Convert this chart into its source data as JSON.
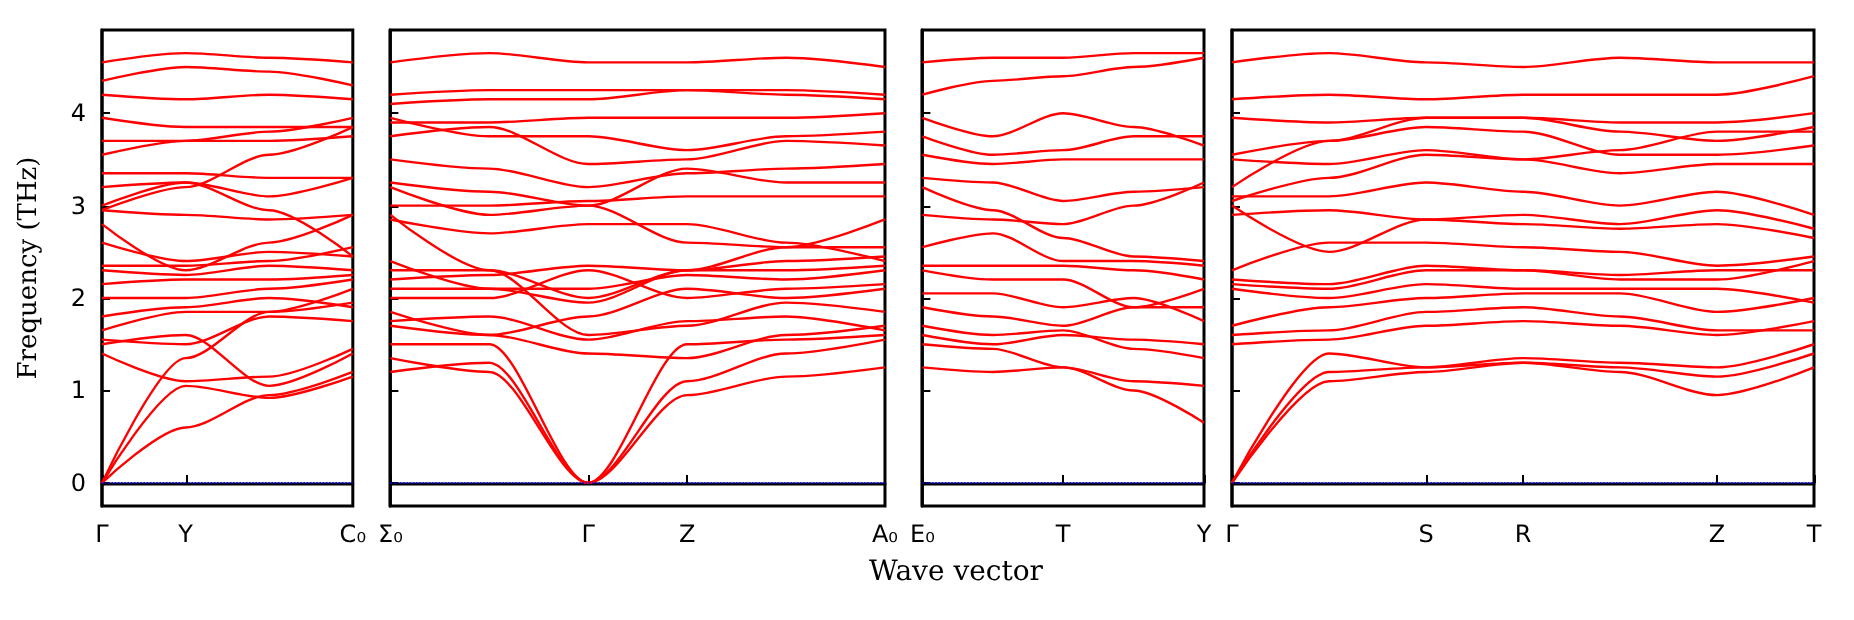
{
  "chart_data": [
    {
      "type": "line",
      "ylabel": "Frequency (THz)",
      "categories": [
        "Γ",
        "Y",
        null,
        "C₀"
      ],
      "ylim": [
        -0.25,
        4.9
      ],
      "yticks": [
        0,
        1,
        2,
        3,
        4
      ],
      "grid": false,
      "ref_lines": [
        {
          "axis": "y",
          "value": 0,
          "color": "#0000ff",
          "line_style": "dotted"
        }
      ],
      "series": [
        {
          "color": "#ff0000",
          "values": [
            0,
            0.6,
            0.95,
            1.2
          ]
        },
        {
          "color": "#ff0000",
          "values": [
            0,
            1.05,
            0.92,
            1.15
          ]
        },
        {
          "color": "#ff0000",
          "values": [
            0,
            1.35,
            1.85,
            2.1
          ]
        },
        {
          "color": "#ff0000",
          "values": [
            1.4,
            1.1,
            1.15,
            1.45
          ]
        },
        {
          "color": "#ff0000",
          "values": [
            1.5,
            1.6,
            1.05,
            1.4
          ]
        },
        {
          "color": "#ff0000",
          "values": [
            1.55,
            1.5,
            1.8,
            1.75
          ]
        },
        {
          "color": "#ff0000",
          "values": [
            1.65,
            1.85,
            1.85,
            1.95
          ]
        },
        {
          "color": "#ff0000",
          "values": [
            1.8,
            1.9,
            2.0,
            1.9
          ]
        },
        {
          "color": "#ff0000",
          "values": [
            2.0,
            2.0,
            2.1,
            2.2
          ]
        },
        {
          "color": "#ff0000",
          "values": [
            2.15,
            2.2,
            2.2,
            2.25
          ]
        },
        {
          "color": "#ff0000",
          "values": [
            2.3,
            2.25,
            2.35,
            2.3
          ]
        },
        {
          "color": "#ff0000",
          "values": [
            2.35,
            2.35,
            2.4,
            2.55
          ]
        },
        {
          "color": "#ff0000",
          "values": [
            2.6,
            2.4,
            2.5,
            2.45
          ]
        },
        {
          "color": "#ff0000",
          "values": [
            2.8,
            2.3,
            2.6,
            2.9
          ]
        },
        {
          "color": "#ff0000",
          "values": [
            2.95,
            2.9,
            2.85,
            2.9
          ]
        },
        {
          "color": "#ff0000",
          "values": [
            3.0,
            3.25,
            2.95,
            2.45
          ]
        },
        {
          "color": "#ff0000",
          "values": [
            3.2,
            3.25,
            3.1,
            3.3
          ]
        },
        {
          "color": "#ff0000",
          "values": [
            3.35,
            3.35,
            3.3,
            3.3
          ]
        },
        {
          "color": "#ff0000",
          "values": [
            2.95,
            3.2,
            3.55,
            3.85
          ]
        },
        {
          "color": "#ff0000",
          "values": [
            3.55,
            3.7,
            3.7,
            3.75
          ]
        },
        {
          "color": "#ff0000",
          "values": [
            3.7,
            3.7,
            3.8,
            3.95
          ]
        },
        {
          "color": "#ff0000",
          "values": [
            3.95,
            3.85,
            3.85,
            3.85
          ]
        },
        {
          "color": "#ff0000",
          "values": [
            4.2,
            4.15,
            4.2,
            4.15
          ]
        },
        {
          "color": "#ff0000",
          "values": [
            4.35,
            4.5,
            4.45,
            4.3
          ]
        },
        {
          "color": "#ff0000",
          "values": [
            4.55,
            4.65,
            4.6,
            4.55
          ]
        }
      ]
    },
    {
      "type": "line",
      "categories": [
        "Σ₀",
        null,
        "Γ",
        "Z",
        null,
        "A₀"
      ],
      "ylim": [
        -0.25,
        4.9
      ],
      "yticks": [
        0,
        1,
        2,
        3,
        4
      ],
      "tick_labels": "x",
      "grid": false,
      "ref_lines": [
        {
          "axis": "y",
          "value": 0,
          "color": "#0000ff",
          "line_style": "dotted"
        }
      ],
      "series": [
        {
          "color": "#ff0000",
          "values": [
            1.2,
            1.3,
            0,
            0.95,
            1.15,
            1.25
          ]
        },
        {
          "color": "#ff0000",
          "values": [
            1.35,
            1.2,
            0,
            1.1,
            1.4,
            1.55
          ]
        },
        {
          "color": "#ff0000",
          "values": [
            1.5,
            1.5,
            0,
            1.5,
            1.55,
            1.6
          ]
        },
        {
          "color": "#ff0000",
          "values": [
            1.7,
            1.6,
            1.4,
            1.35,
            1.6,
            1.7
          ]
        },
        {
          "color": "#ff0000",
          "values": [
            1.75,
            1.8,
            1.55,
            1.75,
            1.8,
            1.65
          ]
        },
        {
          "color": "#ff0000",
          "values": [
            1.85,
            1.6,
            1.8,
            2.1,
            2.0,
            2.1
          ]
        },
        {
          "color": "#ff0000",
          "values": [
            2.0,
            2.0,
            2.3,
            2.0,
            2.1,
            2.15
          ]
        },
        {
          "color": "#ff0000",
          "values": [
            2.1,
            2.1,
            2.1,
            2.25,
            2.2,
            2.3
          ]
        },
        {
          "color": "#ff0000",
          "values": [
            2.2,
            2.25,
            2.35,
            2.3,
            2.3,
            2.35
          ]
        },
        {
          "color": "#ff0000",
          "values": [
            2.3,
            2.3,
            1.6,
            1.7,
            1.95,
            1.85
          ]
        },
        {
          "color": "#ff0000",
          "values": [
            2.4,
            2.1,
            1.95,
            2.3,
            2.4,
            2.45
          ]
        },
        {
          "color": "#ff0000",
          "values": [
            2.9,
            2.3,
            2.0,
            2.3,
            2.55,
            2.55
          ]
        },
        {
          "color": "#ff0000",
          "values": [
            2.85,
            2.7,
            2.8,
            2.8,
            2.6,
            2.4
          ]
        },
        {
          "color": "#ff0000",
          "values": [
            3.2,
            2.9,
            3.0,
            2.6,
            2.55,
            2.85
          ]
        },
        {
          "color": "#ff0000",
          "values": [
            3.0,
            3.0,
            3.05,
            3.1,
            3.1,
            3.1
          ]
        },
        {
          "color": "#ff0000",
          "values": [
            3.25,
            3.15,
            3.0,
            3.4,
            3.25,
            3.25
          ]
        },
        {
          "color": "#ff0000",
          "values": [
            3.5,
            3.4,
            3.2,
            3.35,
            3.4,
            3.45
          ]
        },
        {
          "color": "#ff0000",
          "values": [
            3.75,
            3.85,
            3.45,
            3.5,
            3.7,
            3.65
          ]
        },
        {
          "color": "#ff0000",
          "values": [
            3.95,
            3.75,
            3.75,
            3.6,
            3.75,
            3.8
          ]
        },
        {
          "color": "#ff0000",
          "values": [
            3.9,
            3.9,
            3.95,
            3.95,
            3.95,
            4.0
          ]
        },
        {
          "color": "#ff0000",
          "values": [
            4.1,
            4.15,
            4.15,
            4.25,
            4.25,
            4.2
          ]
        },
        {
          "color": "#ff0000",
          "values": [
            4.2,
            4.25,
            4.25,
            4.25,
            4.2,
            4.15
          ]
        },
        {
          "color": "#ff0000",
          "values": [
            4.55,
            4.65,
            4.55,
            4.55,
            4.6,
            4.5
          ]
        }
      ]
    },
    {
      "type": "line",
      "xlabel": "Wave vector",
      "categories": [
        "E₀",
        null,
        "T",
        null,
        "Y"
      ],
      "ylim": [
        -0.25,
        4.9
      ],
      "yticks": [
        0,
        1,
        2,
        3,
        4
      ],
      "tick_labels": "x",
      "grid": false,
      "ref_lines": [
        {
          "axis": "y",
          "value": 0,
          "color": "#0000ff",
          "line_style": "dotted"
        }
      ],
      "series": [
        {
          "color": "#ff0000",
          "values": [
            1.25,
            1.2,
            1.25,
            1.0,
            0.65
          ]
        },
        {
          "color": "#ff0000",
          "values": [
            1.5,
            1.45,
            1.25,
            1.1,
            1.05
          ]
        },
        {
          "color": "#ff0000",
          "values": [
            1.6,
            1.5,
            1.6,
            1.55,
            1.5
          ]
        },
        {
          "color": "#ff0000",
          "values": [
            1.7,
            1.6,
            1.65,
            1.45,
            1.35
          ]
        },
        {
          "color": "#ff0000",
          "values": [
            1.9,
            1.8,
            1.7,
            1.9,
            2.1
          ]
        },
        {
          "color": "#ff0000",
          "values": [
            2.05,
            2.05,
            1.9,
            2.0,
            1.75
          ]
        },
        {
          "color": "#ff0000",
          "values": [
            2.3,
            2.2,
            2.2,
            1.9,
            1.9
          ]
        },
        {
          "color": "#ff0000",
          "values": [
            2.35,
            2.35,
            2.35,
            2.3,
            2.2
          ]
        },
        {
          "color": "#ff0000",
          "values": [
            2.55,
            2.7,
            2.4,
            2.4,
            2.35
          ]
        },
        {
          "color": "#ff0000",
          "values": [
            2.9,
            2.85,
            2.8,
            3.0,
            3.25
          ]
        },
        {
          "color": "#ff0000",
          "values": [
            3.2,
            2.95,
            2.65,
            2.45,
            2.4
          ]
        },
        {
          "color": "#ff0000",
          "values": [
            3.3,
            3.25,
            3.05,
            3.15,
            3.2
          ]
        },
        {
          "color": "#ff0000",
          "values": [
            3.55,
            3.45,
            3.5,
            3.5,
            3.5
          ]
        },
        {
          "color": "#ff0000",
          "values": [
            3.75,
            3.55,
            3.6,
            3.75,
            3.75
          ]
        },
        {
          "color": "#ff0000",
          "values": [
            3.95,
            3.75,
            4.0,
            3.85,
            3.65
          ]
        },
        {
          "color": "#ff0000",
          "values": [
            4.2,
            4.35,
            4.4,
            4.5,
            4.6
          ]
        },
        {
          "color": "#ff0000",
          "values": [
            4.55,
            4.6,
            4.6,
            4.65,
            4.65
          ]
        }
      ]
    },
    {
      "type": "line",
      "categories": [
        "Γ",
        null,
        "S",
        "R",
        null,
        "Z",
        "T"
      ],
      "ylim": [
        -0.25,
        4.9
      ],
      "yticks": [
        0,
        1,
        2,
        3,
        4
      ],
      "tick_labels": "x",
      "grid": false,
      "ref_lines": [
        {
          "axis": "y",
          "value": 0,
          "color": "#0000ff",
          "line_style": "dotted"
        }
      ],
      "series": [
        {
          "color": "#ff0000",
          "values": [
            0,
            1.2,
            1.25,
            1.3,
            1.2,
            0.95,
            1.25
          ]
        },
        {
          "color": "#ff0000",
          "values": [
            0,
            1.1,
            1.2,
            1.3,
            1.25,
            1.15,
            1.4
          ]
        },
        {
          "color": "#ff0000",
          "values": [
            0,
            1.4,
            1.25,
            1.35,
            1.3,
            1.25,
            1.5
          ]
        },
        {
          "color": "#ff0000",
          "values": [
            1.5,
            1.55,
            1.7,
            1.75,
            1.7,
            1.6,
            1.75
          ]
        },
        {
          "color": "#ff0000",
          "values": [
            1.6,
            1.65,
            1.85,
            1.9,
            1.8,
            1.65,
            1.65
          ]
        },
        {
          "color": "#ff0000",
          "values": [
            1.7,
            1.9,
            2.0,
            2.05,
            2.05,
            1.85,
            2.0
          ]
        },
        {
          "color": "#ff0000",
          "values": [
            2.1,
            2.0,
            2.15,
            2.1,
            2.1,
            2.1,
            1.95
          ]
        },
        {
          "color": "#ff0000",
          "values": [
            2.15,
            2.1,
            2.3,
            2.3,
            2.2,
            2.2,
            2.4
          ]
        },
        {
          "color": "#ff0000",
          "values": [
            2.2,
            2.15,
            2.35,
            2.3,
            2.25,
            2.3,
            2.3
          ]
        },
        {
          "color": "#ff0000",
          "values": [
            2.3,
            2.6,
            2.6,
            2.55,
            2.5,
            2.35,
            2.45
          ]
        },
        {
          "color": "#ff0000",
          "values": [
            3.0,
            2.5,
            2.85,
            2.8,
            2.75,
            2.8,
            2.65
          ]
        },
        {
          "color": "#ff0000",
          "values": [
            2.9,
            2.95,
            2.85,
            2.9,
            2.8,
            2.95,
            2.75
          ]
        },
        {
          "color": "#ff0000",
          "values": [
            3.1,
            3.1,
            3.25,
            3.15,
            3.0,
            3.15,
            2.9
          ]
        },
        {
          "color": "#ff0000",
          "values": [
            3.05,
            3.3,
            3.55,
            3.5,
            3.35,
            3.45,
            3.45
          ]
        },
        {
          "color": "#ff0000",
          "values": [
            3.2,
            3.7,
            3.85,
            3.8,
            3.55,
            3.55,
            3.65
          ]
        },
        {
          "color": "#ff0000",
          "values": [
            3.5,
            3.45,
            3.6,
            3.5,
            3.6,
            3.8,
            3.8
          ]
        },
        {
          "color": "#ff0000",
          "values": [
            3.55,
            3.7,
            3.95,
            3.95,
            3.8,
            3.7,
            3.85
          ]
        },
        {
          "color": "#ff0000",
          "values": [
            3.95,
            3.9,
            3.95,
            3.95,
            3.9,
            3.9,
            4.0
          ]
        },
        {
          "color": "#ff0000",
          "values": [
            4.15,
            4.2,
            4.15,
            4.2,
            4.2,
            4.2,
            4.4
          ]
        },
        {
          "color": "#ff0000",
          "values": [
            4.55,
            4.65,
            4.55,
            4.5,
            4.6,
            4.55,
            4.55
          ]
        }
      ]
    }
  ]
}
